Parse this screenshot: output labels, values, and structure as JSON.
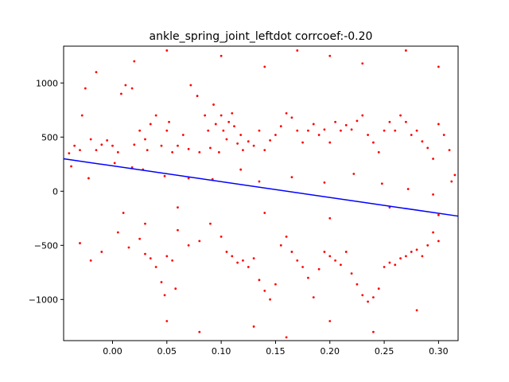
{
  "chart_data": {
    "type": "scatter",
    "title": "ankle_spring_joint_leftdot corrcoef:-0.20",
    "xlabel": "",
    "ylabel": "",
    "xlim": [
      -0.045,
      0.318
    ],
    "ylim": [
      -1380,
      1340
    ],
    "grid": false,
    "x_ticks": [
      {
        "value": 0.0,
        "label": "0.00"
      },
      {
        "value": 0.05,
        "label": "0.05"
      },
      {
        "value": 0.1,
        "label": "0.10"
      },
      {
        "value": 0.15,
        "label": "0.15"
      },
      {
        "value": 0.2,
        "label": "0.20"
      },
      {
        "value": 0.25,
        "label": "0.25"
      },
      {
        "value": 0.3,
        "label": "0.30"
      }
    ],
    "y_ticks": [
      {
        "value": 1000,
        "label": "1000"
      },
      {
        "value": 500,
        "label": "500"
      },
      {
        "value": 0,
        "label": "0"
      },
      {
        "value": -500,
        "label": "−500"
      },
      {
        "value": -1000,
        "label": "−1000"
      }
    ],
    "point_color": "#ff0000",
    "points": [
      [
        -0.04,
        350
      ],
      [
        -0.035,
        420
      ],
      [
        -0.03,
        380
      ],
      [
        -0.028,
        700
      ],
      [
        -0.025,
        950
      ],
      [
        -0.02,
        480
      ],
      [
        -0.015,
        380
      ],
      [
        -0.01,
        430
      ],
      [
        -0.005,
        470
      ],
      [
        0.0,
        420
      ],
      [
        0.005,
        360
      ],
      [
        0.008,
        900
      ],
      [
        0.012,
        980
      ],
      [
        0.018,
        950
      ],
      [
        0.02,
        430
      ],
      [
        0.025,
        560
      ],
      [
        0.03,
        480
      ],
      [
        0.032,
        380
      ],
      [
        0.035,
        620
      ],
      [
        0.04,
        700
      ],
      [
        0.045,
        420
      ],
      [
        0.05,
        560
      ],
      [
        0.052,
        640
      ],
      [
        0.055,
        360
      ],
      [
        0.06,
        420
      ],
      [
        0.065,
        520
      ],
      [
        0.07,
        390
      ],
      [
        0.072,
        980
      ],
      [
        0.078,
        880
      ],
      [
        0.08,
        360
      ],
      [
        0.085,
        700
      ],
      [
        0.088,
        560
      ],
      [
        0.09,
        400
      ],
      [
        0.093,
        800
      ],
      [
        0.095,
        620
      ],
      [
        0.098,
        360
      ],
      [
        0.1,
        700
      ],
      [
        0.102,
        560
      ],
      [
        0.105,
        480
      ],
      [
        0.107,
        640
      ],
      [
        0.11,
        720
      ],
      [
        0.112,
        600
      ],
      [
        0.115,
        440
      ],
      [
        0.118,
        520
      ],
      [
        0.12,
        380
      ],
      [
        0.125,
        460
      ],
      [
        0.13,
        420
      ],
      [
        0.135,
        560
      ],
      [
        0.14,
        380
      ],
      [
        0.145,
        470
      ],
      [
        0.15,
        520
      ],
      [
        0.155,
        600
      ],
      [
        0.16,
        720
      ],
      [
        0.165,
        680
      ],
      [
        0.17,
        560
      ],
      [
        0.175,
        450
      ],
      [
        0.18,
        560
      ],
      [
        0.185,
        620
      ],
      [
        0.19,
        520
      ],
      [
        0.195,
        570
      ],
      [
        0.2,
        450
      ],
      [
        0.205,
        640
      ],
      [
        0.21,
        560
      ],
      [
        0.215,
        610
      ],
      [
        0.22,
        570
      ],
      [
        0.225,
        650
      ],
      [
        0.23,
        700
      ],
      [
        0.235,
        520
      ],
      [
        0.24,
        450
      ],
      [
        0.245,
        360
      ],
      [
        0.25,
        560
      ],
      [
        0.255,
        640
      ],
      [
        0.26,
        560
      ],
      [
        0.265,
        700
      ],
      [
        0.27,
        640
      ],
      [
        0.275,
        520
      ],
      [
        0.28,
        560
      ],
      [
        0.285,
        460
      ],
      [
        0.29,
        400
      ],
      [
        0.295,
        300
      ],
      [
        0.3,
        620
      ],
      [
        0.305,
        520
      ],
      [
        0.31,
        380
      ],
      [
        0.315,
        150
      ],
      [
        -0.038,
        230
      ],
      [
        -0.022,
        120
      ],
      [
        0.002,
        260
      ],
      [
        0.018,
        220
      ],
      [
        0.028,
        200
      ],
      [
        0.048,
        140
      ],
      [
        0.07,
        120
      ],
      [
        0.092,
        110
      ],
      [
        0.118,
        200
      ],
      [
        0.135,
        90
      ],
      [
        0.165,
        130
      ],
      [
        0.195,
        80
      ],
      [
        0.222,
        160
      ],
      [
        0.248,
        70
      ],
      [
        0.272,
        20
      ],
      [
        0.295,
        -30
      ],
      [
        0.312,
        90
      ],
      [
        -0.03,
        -480
      ],
      [
        -0.02,
        -640
      ],
      [
        -0.01,
        -560
      ],
      [
        0.005,
        -380
      ],
      [
        0.015,
        -520
      ],
      [
        0.025,
        -440
      ],
      [
        0.03,
        -580
      ],
      [
        0.035,
        -620
      ],
      [
        0.04,
        -700
      ],
      [
        0.045,
        -840
      ],
      [
        0.048,
        -960
      ],
      [
        0.05,
        -600
      ],
      [
        0.055,
        -640
      ],
      [
        0.058,
        -900
      ],
      [
        0.06,
        -360
      ],
      [
        0.07,
        -500
      ],
      [
        0.08,
        -460
      ],
      [
        0.09,
        -300
      ],
      [
        0.1,
        -420
      ],
      [
        0.105,
        -560
      ],
      [
        0.11,
        -600
      ],
      [
        0.115,
        -660
      ],
      [
        0.12,
        -640
      ],
      [
        0.125,
        -700
      ],
      [
        0.13,
        -620
      ],
      [
        0.135,
        -820
      ],
      [
        0.14,
        -920
      ],
      [
        0.145,
        -1000
      ],
      [
        0.15,
        -860
      ],
      [
        0.155,
        -500
      ],
      [
        0.16,
        -420
      ],
      [
        0.165,
        -560
      ],
      [
        0.17,
        -640
      ],
      [
        0.175,
        -700
      ],
      [
        0.18,
        -800
      ],
      [
        0.185,
        -980
      ],
      [
        0.19,
        -720
      ],
      [
        0.195,
        -560
      ],
      [
        0.2,
        -600
      ],
      [
        0.205,
        -640
      ],
      [
        0.21,
        -680
      ],
      [
        0.215,
        -560
      ],
      [
        0.22,
        -760
      ],
      [
        0.225,
        -860
      ],
      [
        0.23,
        -960
      ],
      [
        0.235,
        -1020
      ],
      [
        0.24,
        -980
      ],
      [
        0.245,
        -900
      ],
      [
        0.25,
        -700
      ],
      [
        0.255,
        -660
      ],
      [
        0.26,
        -680
      ],
      [
        0.265,
        -620
      ],
      [
        0.27,
        -600
      ],
      [
        0.275,
        -560
      ],
      [
        0.28,
        -540
      ],
      [
        0.285,
        -600
      ],
      [
        0.29,
        -500
      ],
      [
        0.295,
        -380
      ],
      [
        0.3,
        -460
      ],
      [
        0.01,
        -200
      ],
      [
        0.03,
        -300
      ],
      [
        0.06,
        -150
      ],
      [
        0.14,
        -200
      ],
      [
        0.2,
        -250
      ],
      [
        0.255,
        -150
      ],
      [
        0.3,
        -220
      ],
      [
        -0.015,
        1100
      ],
      [
        0.02,
        1200
      ],
      [
        0.05,
        1300
      ],
      [
        0.1,
        1250
      ],
      [
        0.14,
        1150
      ],
      [
        0.17,
        1300
      ],
      [
        0.2,
        1250
      ],
      [
        0.23,
        1180
      ],
      [
        0.27,
        1300
      ],
      [
        0.3,
        1150
      ],
      [
        0.05,
        -1200
      ],
      [
        0.08,
        -1300
      ],
      [
        0.13,
        -1250
      ],
      [
        0.16,
        -1350
      ],
      [
        0.2,
        -1200
      ],
      [
        0.24,
        -1300
      ],
      [
        0.28,
        -1100
      ]
    ],
    "regression_line": {
      "color": "#0000ff",
      "x": [
        -0.045,
        0.318
      ],
      "y": [
        300,
        -230
      ]
    }
  }
}
